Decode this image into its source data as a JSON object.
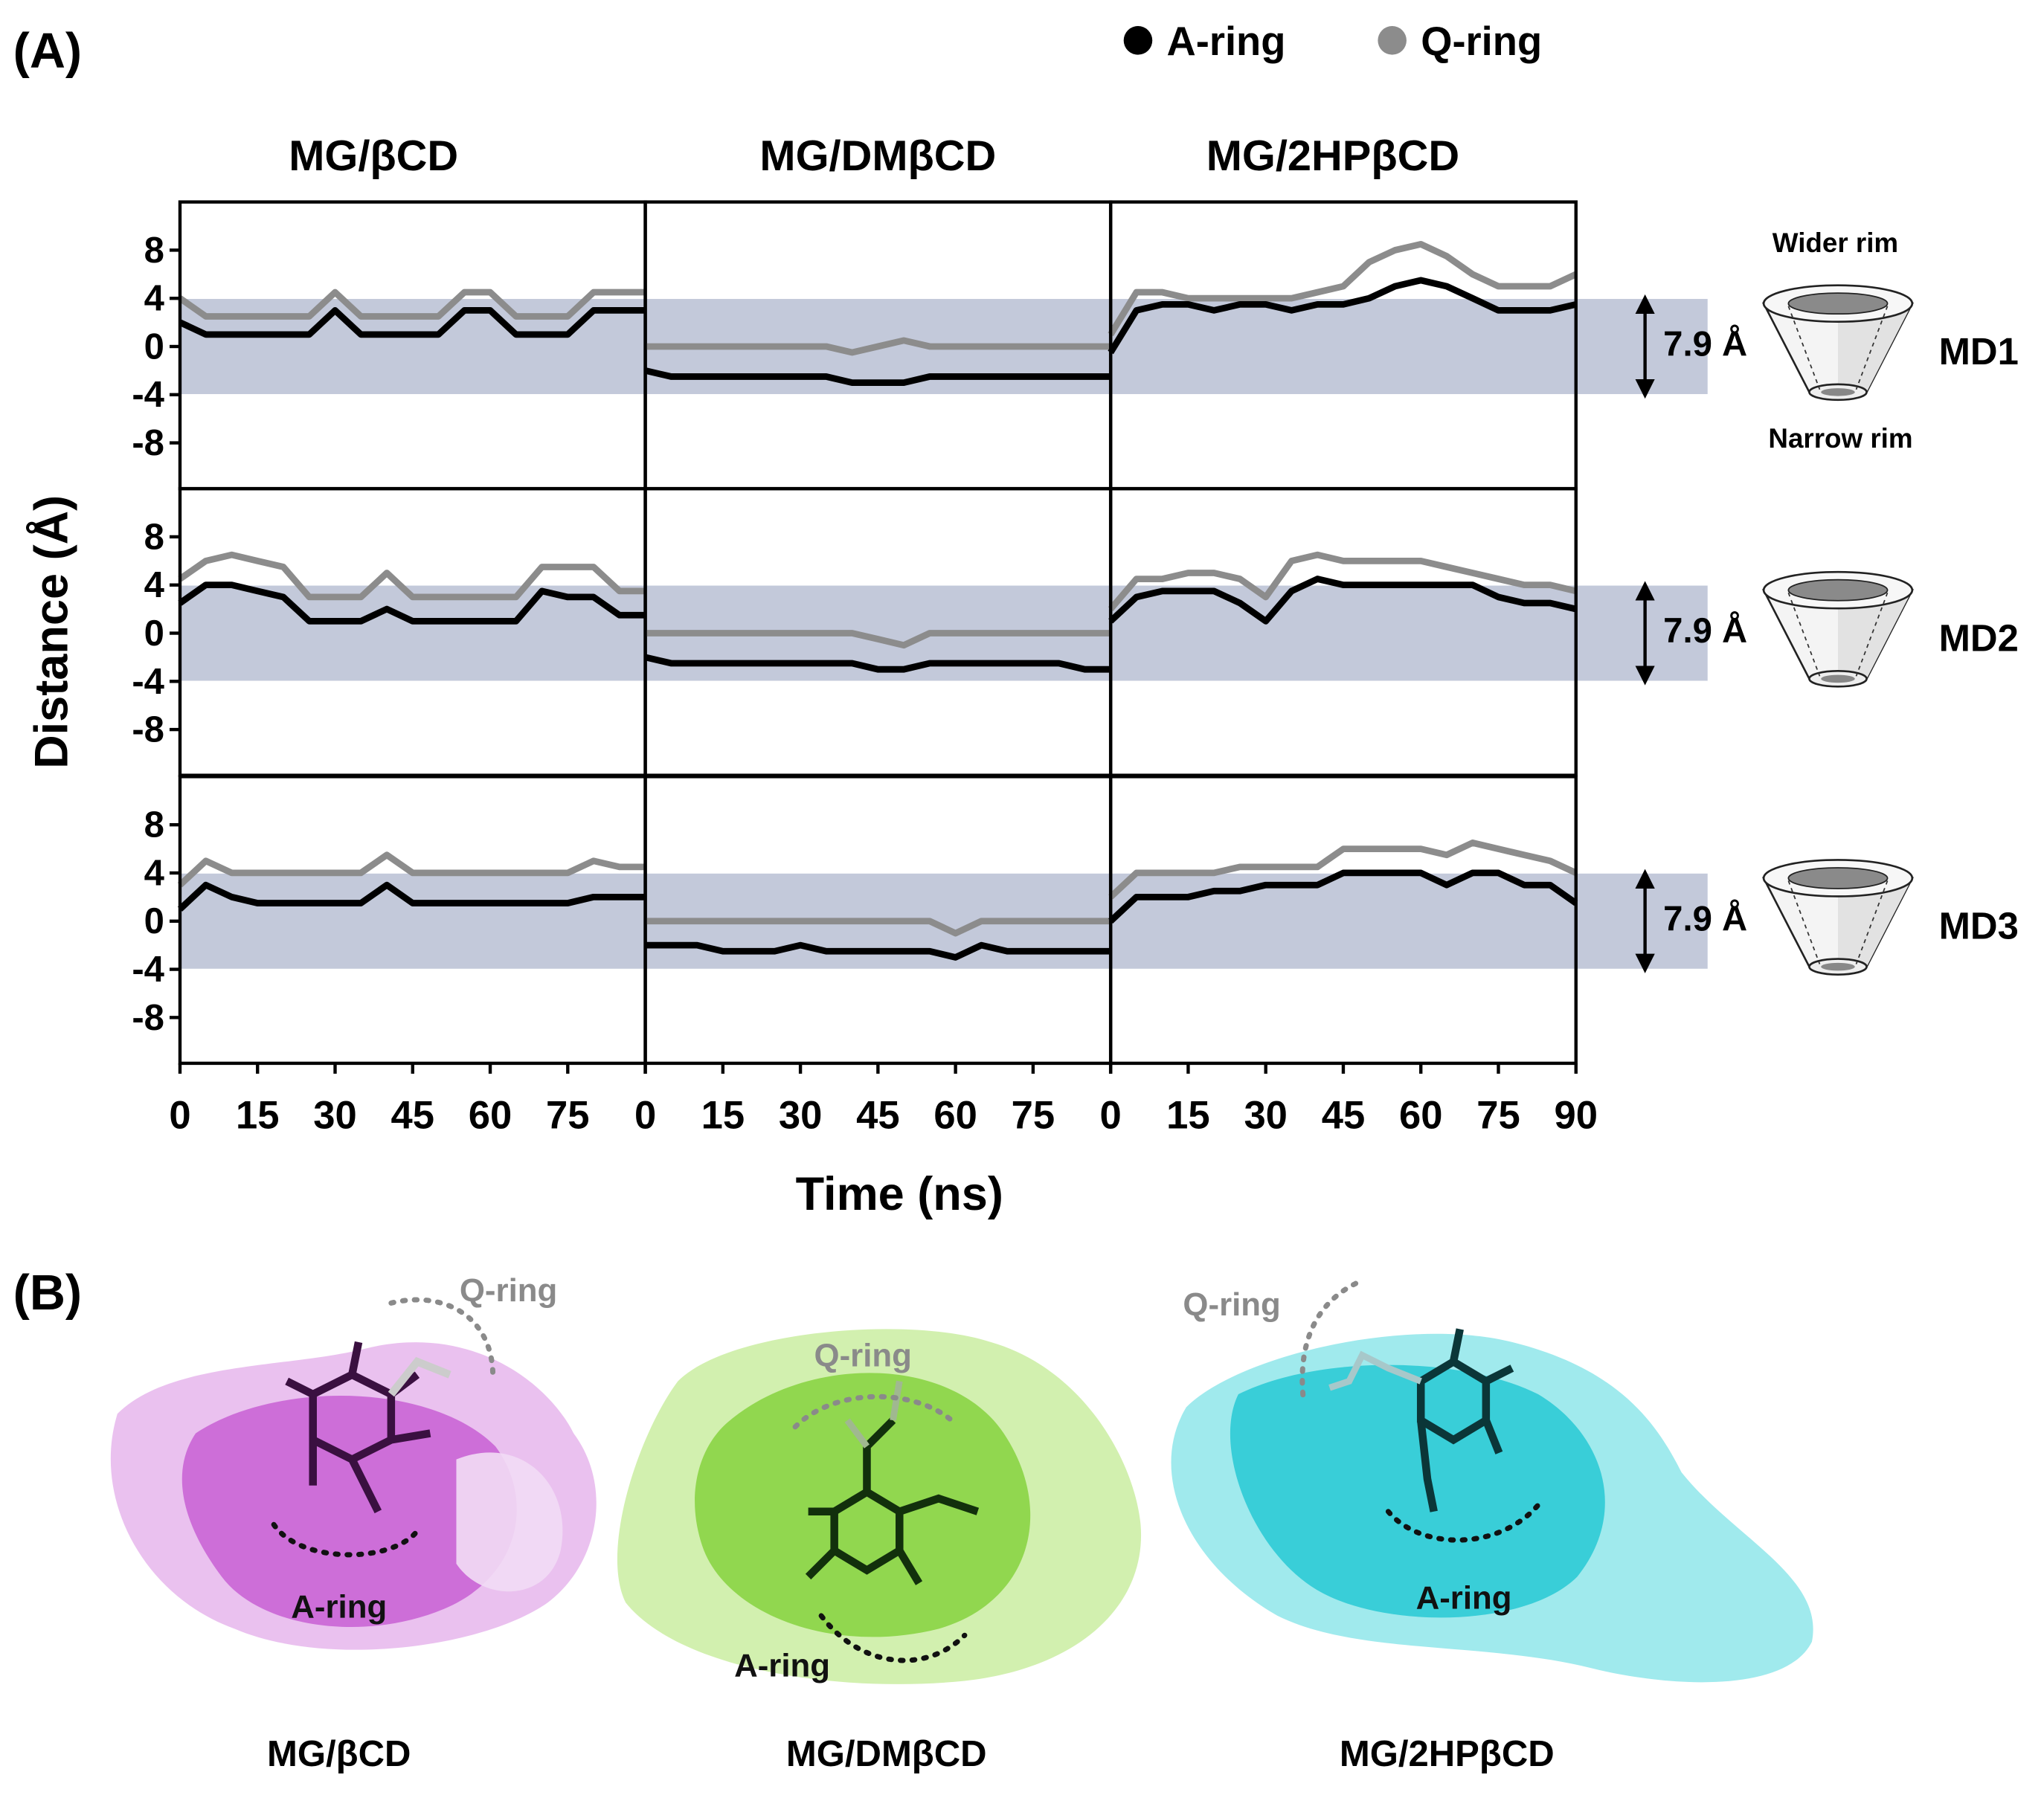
{
  "chart_data": {
    "type": "scatter",
    "x_label": "Time (ns)",
    "y_label": "Distance (Å)",
    "columns": [
      "MG/βCD",
      "MG/DMβCD",
      "MG/2HPβCD"
    ],
    "rows": [
      "MD1",
      "MD2",
      "MD3"
    ],
    "series": [
      {
        "name": "A-ring",
        "color": "#000000"
      },
      {
        "name": "Q-ring",
        "color": "#8c8c8c"
      }
    ],
    "x": [
      0,
      5,
      10,
      15,
      20,
      25,
      30,
      35,
      40,
      45,
      50,
      55,
      60,
      65,
      70,
      75,
      80,
      85,
      90
    ],
    "xlim": [
      0,
      90
    ],
    "xticks": [
      0,
      15,
      30,
      45,
      60,
      75,
      90
    ],
    "ylim": [
      -11.8,
      12
    ],
    "yticks": [
      -8,
      -4,
      0,
      4,
      8
    ],
    "band": [
      -3.95,
      3.95
    ],
    "band_label": "7.9 Å",
    "band_color": "#c3c9da",
    "panels": [
      [
        [
          2,
          1,
          1,
          1,
          1,
          1,
          3,
          1,
          1,
          1,
          1,
          3,
          3,
          1,
          1,
          1,
          3,
          3,
          3
        ],
        [
          4,
          2.5,
          2.5,
          2.5,
          2.5,
          2.5,
          4.5,
          2.5,
          2.5,
          2.5,
          2.5,
          4.5,
          4.5,
          2.5,
          2.5,
          2.5,
          4.5,
          4.5,
          4.5
        ]
      ],
      [
        [
          -2,
          -2.5,
          -2.5,
          -2.5,
          -2.5,
          -2.5,
          -2.5,
          -2.5,
          -3,
          -3,
          -3,
          -2.5,
          -2.5,
          -2.5,
          -2.5,
          -2.5,
          -2.5,
          -2.5,
          -2.5
        ],
        [
          0,
          0,
          0,
          0,
          0,
          0,
          0,
          0,
          -0.5,
          0,
          0.5,
          0,
          0,
          0,
          0,
          0,
          0,
          0,
          0
        ]
      ],
      [
        [
          -0.5,
          3,
          3.5,
          3.5,
          3,
          3.5,
          3.5,
          3,
          3.5,
          3.5,
          4,
          5,
          5.5,
          5,
          4,
          3,
          3,
          3,
          3.5
        ],
        [
          1,
          4.5,
          4.5,
          4,
          4,
          4,
          4,
          4,
          4.5,
          5,
          7,
          8,
          8.5,
          7.5,
          6,
          5,
          5,
          5,
          6
        ]
      ],
      [
        [
          2.5,
          4,
          4,
          3.5,
          3,
          1,
          1,
          1,
          2,
          1,
          1,
          1,
          1,
          1,
          3.5,
          3,
          3,
          1.5,
          1.5
        ],
        [
          4.5,
          6,
          6.5,
          6,
          5.5,
          3,
          3,
          3,
          5,
          3,
          3,
          3,
          3,
          3,
          5.5,
          5.5,
          5.5,
          3.5,
          3.5
        ]
      ],
      [
        [
          -2,
          -2.5,
          -2.5,
          -2.5,
          -2.5,
          -2.5,
          -2.5,
          -2.5,
          -2.5,
          -3,
          -3,
          -2.5,
          -2.5,
          -2.5,
          -2.5,
          -2.5,
          -2.5,
          -3,
          -3
        ],
        [
          0,
          0,
          0,
          0,
          0,
          0,
          0,
          0,
          0,
          -0.5,
          -1,
          0,
          0,
          0,
          0,
          0,
          0,
          0,
          0
        ]
      ],
      [
        [
          1,
          3,
          3.5,
          3.5,
          3.5,
          2.5,
          1,
          3.5,
          4.5,
          4,
          4,
          4,
          4,
          4,
          4,
          3,
          2.5,
          2.5,
          2
        ],
        [
          2,
          4.5,
          4.5,
          5,
          5,
          4.5,
          3,
          6,
          6.5,
          6,
          6,
          6,
          6,
          5.5,
          5,
          4.5,
          4,
          4,
          3.5
        ]
      ],
      [
        [
          1,
          3,
          2,
          1.5,
          1.5,
          1.5,
          1.5,
          1.5,
          3,
          1.5,
          1.5,
          1.5,
          1.5,
          1.5,
          1.5,
          1.5,
          2,
          2,
          2
        ],
        [
          3,
          5,
          4,
          4,
          4,
          4,
          4,
          4,
          5.5,
          4,
          4,
          4,
          4,
          4,
          4,
          4,
          5,
          4.5,
          4.5
        ]
      ],
      [
        [
          -2,
          -2,
          -2,
          -2.5,
          -2.5,
          -2.5,
          -2,
          -2.5,
          -2.5,
          -2.5,
          -2.5,
          -2.5,
          -3,
          -2,
          -2.5,
          -2.5,
          -2.5,
          -2.5,
          -2.5
        ],
        [
          0,
          0,
          0,
          0,
          0,
          0,
          0,
          0,
          0,
          0,
          0,
          0,
          -1,
          0,
          0,
          0,
          0,
          0,
          0
        ]
      ],
      [
        [
          0,
          2,
          2,
          2,
          2.5,
          2.5,
          3,
          3,
          3,
          4,
          4,
          4,
          4,
          3,
          4,
          4,
          3,
          3,
          1.5
        ],
        [
          2,
          4,
          4,
          4,
          4,
          4.5,
          4.5,
          4.5,
          4.5,
          6,
          6,
          6,
          6,
          5.5,
          6.5,
          6,
          5.5,
          5,
          4
        ]
      ]
    ]
  },
  "figure": {
    "label_a": "(A)",
    "label_b": "(B)",
    "wider_rim": "Wider rim",
    "narrow_rim": "Narrow rim"
  }
}
